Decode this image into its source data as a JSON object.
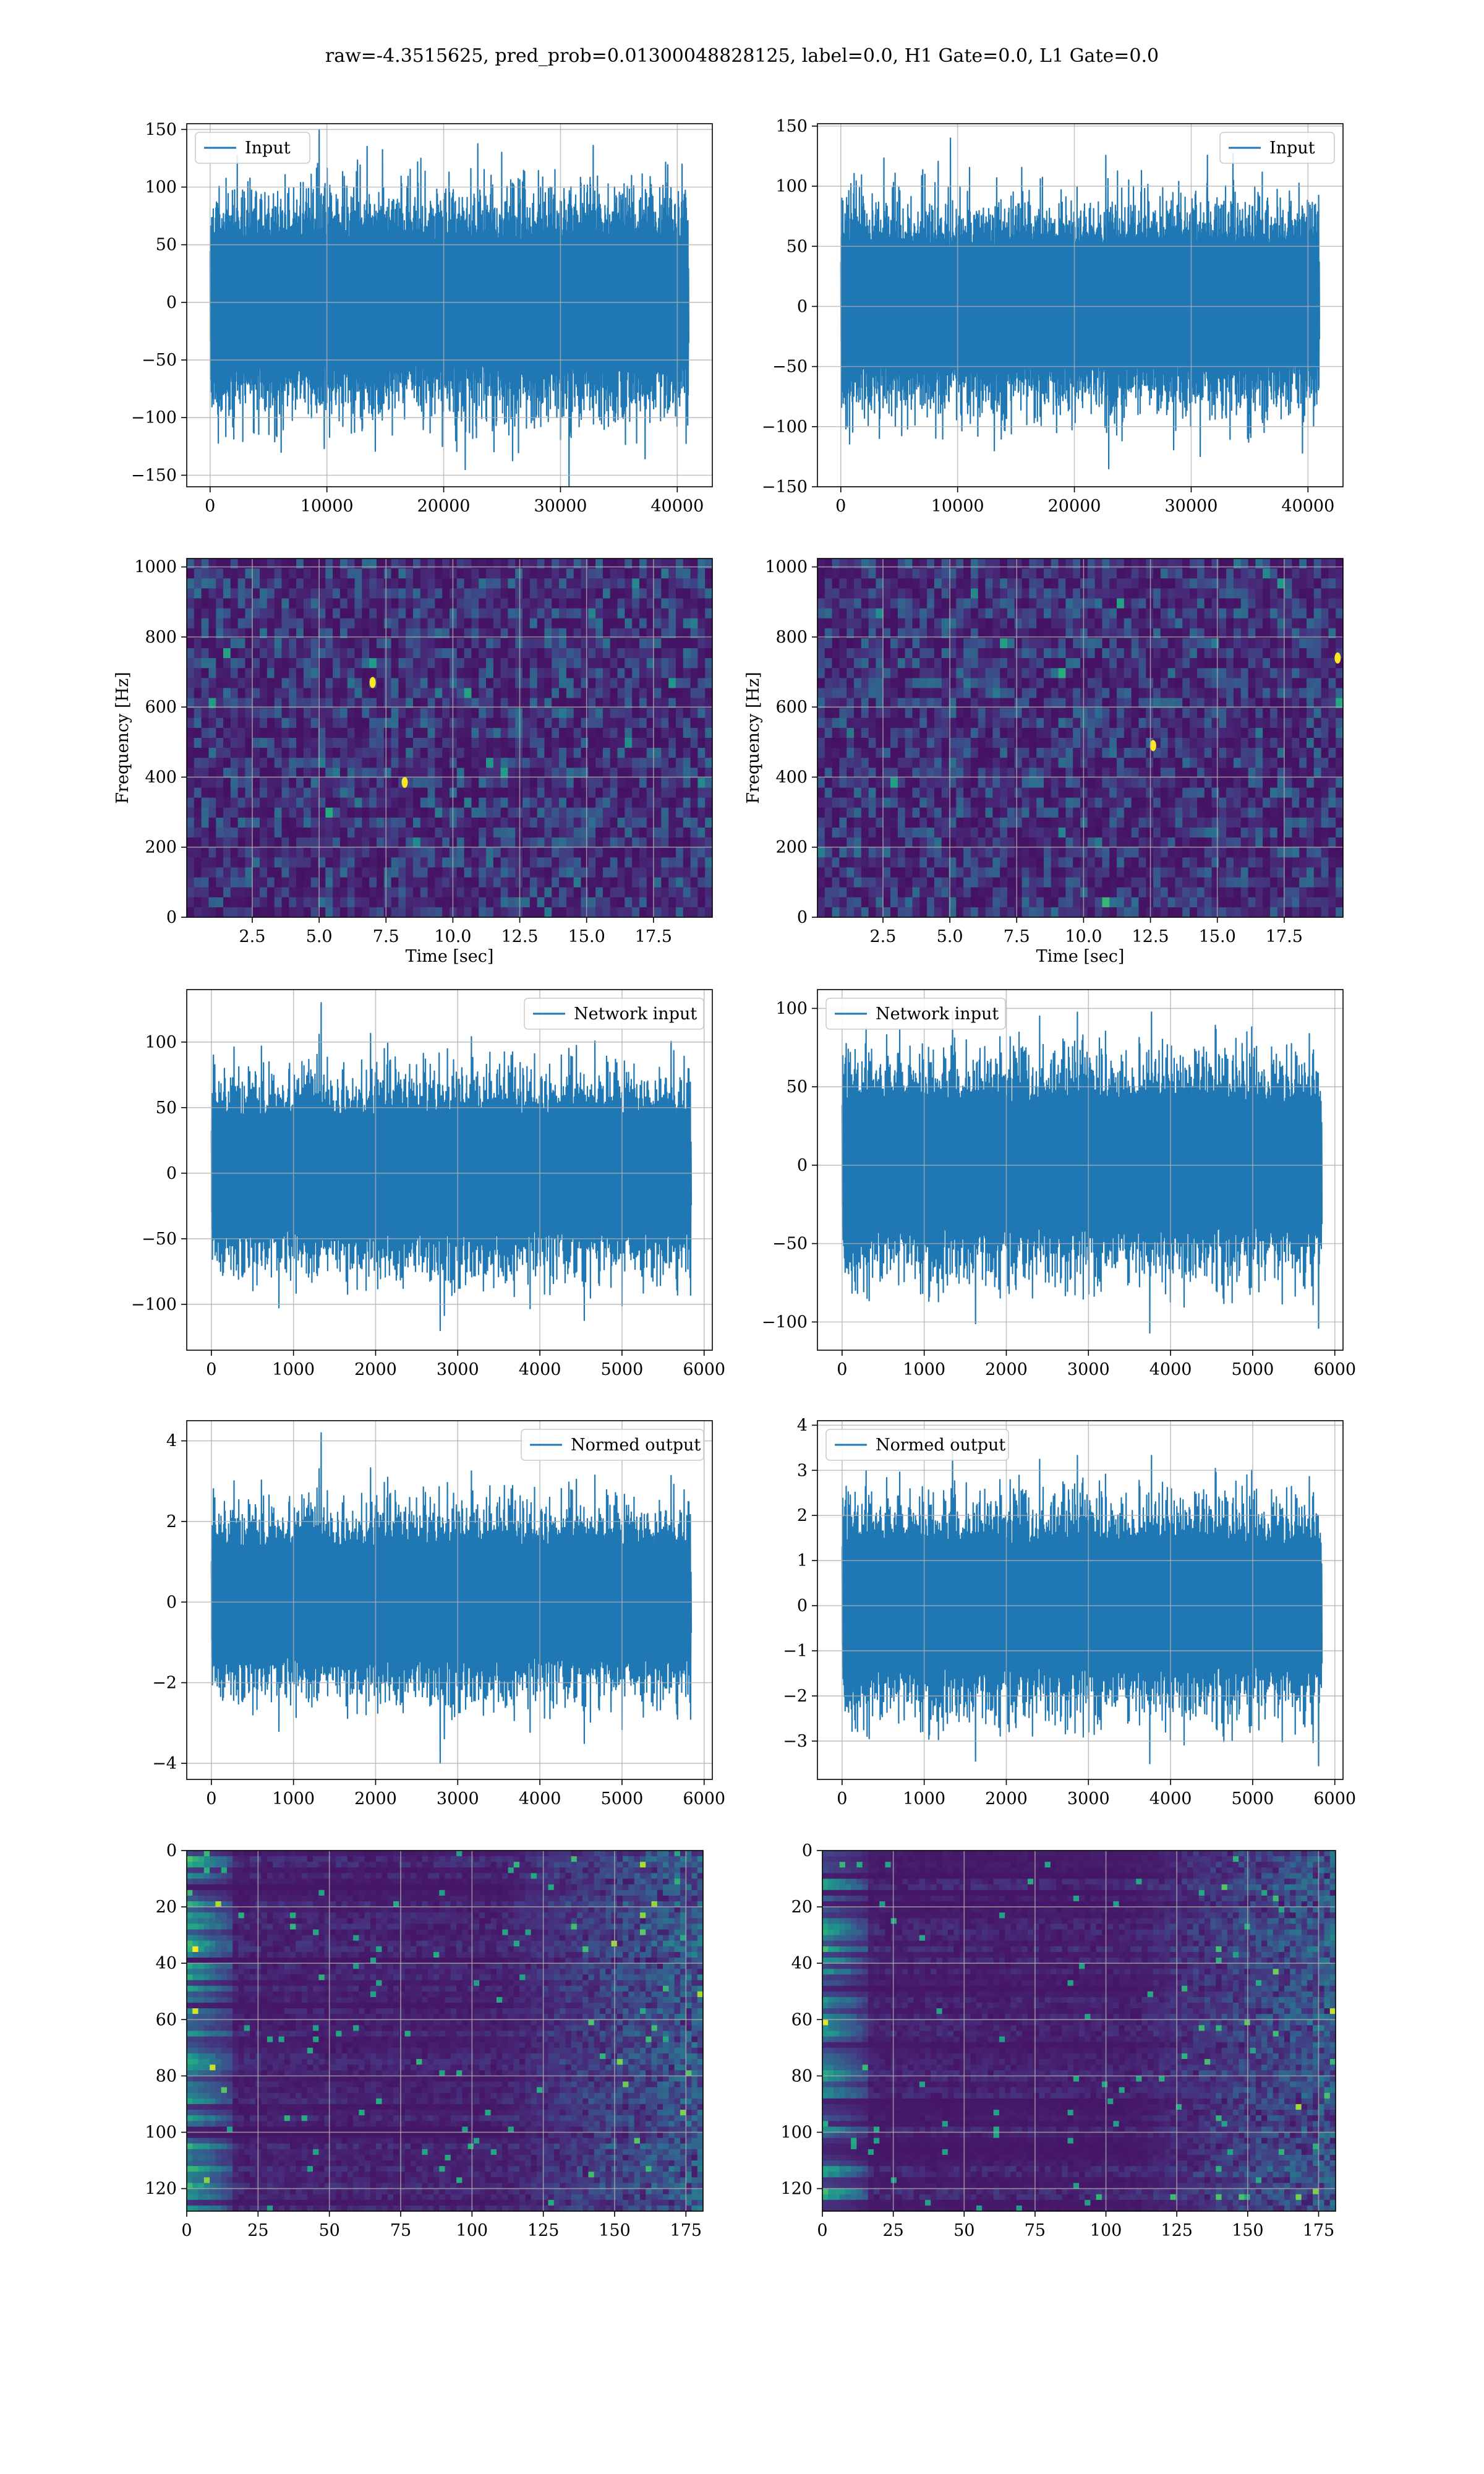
{
  "figure": {
    "title": "raw=-4.3515625, pred_prob=0.01300048828125, label=0.0, H1 Gate=0.0, L1 Gate=0.0"
  },
  "colors": {
    "line": "#1f77b4",
    "grid": "#b0b0b0",
    "viridis_low": "#440154",
    "viridis_mid": "#21918c",
    "viridis_high": "#fde725"
  },
  "chart_data": [
    {
      "id": "h1_input",
      "type": "line",
      "xlim": [
        -2000,
        43000
      ],
      "ylim": [
        -160,
        155
      ],
      "xticks": [
        0,
        10000,
        20000,
        30000,
        40000
      ],
      "yticks": [
        -150,
        -100,
        -50,
        0,
        50,
        100,
        150
      ],
      "x_range": [
        0,
        40960
      ],
      "n_points": 900,
      "amplitude": 30,
      "peak_max": 150,
      "peak_min": -145,
      "seed": 11,
      "legend": {
        "label": "Input",
        "loc": "upper left"
      },
      "grid": true
    },
    {
      "id": "l1_input",
      "type": "line",
      "xlim": [
        -2000,
        43000
      ],
      "ylim": [
        -150,
        152
      ],
      "xticks": [
        0,
        10000,
        20000,
        30000,
        40000
      ],
      "yticks": [
        -150,
        -100,
        -50,
        0,
        50,
        100,
        150
      ],
      "x_range": [
        0,
        40960
      ],
      "n_points": 900,
      "amplitude": 27,
      "peak_max": 140,
      "peak_min": -135,
      "seed": 23,
      "legend": {
        "label": "Input",
        "loc": "upper right"
      },
      "grid": true
    },
    {
      "id": "h1_spectrogram",
      "type": "heatmap",
      "xlim": [
        0.05,
        19.7
      ],
      "ylim": [
        0,
        1024
      ],
      "xticks": [
        2.5,
        5.0,
        7.5,
        10.0,
        12.5,
        15.0,
        17.5
      ],
      "yticks": [
        0,
        200,
        400,
        600,
        800,
        1000
      ],
      "xlabel": "Time [sec]",
      "ylabel": "Frequency [Hz]",
      "rows": 36,
      "cols": 72,
      "seed": 5,
      "hot": [
        [
          7.0,
          670
        ],
        [
          8.2,
          385
        ]
      ],
      "grid": true
    },
    {
      "id": "l1_spectrogram",
      "type": "heatmap",
      "xlim": [
        0.05,
        19.7
      ],
      "ylim": [
        0,
        1024
      ],
      "xticks": [
        2.5,
        5.0,
        7.5,
        10.0,
        12.5,
        15.0,
        17.5
      ],
      "yticks": [
        0,
        200,
        400,
        600,
        800,
        1000
      ],
      "xlabel": "Time [sec]",
      "ylabel": "Frequency [Hz]",
      "rows": 36,
      "cols": 72,
      "seed": 9,
      "hot": [
        [
          12.6,
          490
        ],
        [
          19.5,
          740
        ]
      ],
      "grid": true
    },
    {
      "id": "h1_network_input",
      "type": "line",
      "xlim": [
        -300,
        6100
      ],
      "ylim": [
        -135,
        140
      ],
      "xticks": [
        0,
        1000,
        2000,
        3000,
        4000,
        5000,
        6000
      ],
      "yticks": [
        -100,
        -50,
        0,
        50,
        100
      ],
      "x_range": [
        0,
        5840
      ],
      "n_points": 700,
      "amplitude": 24,
      "peak_max": 130,
      "peak_min": -120,
      "seed": 31,
      "legend": {
        "label": "Network input",
        "loc": "upper right"
      },
      "grid": true
    },
    {
      "id": "l1_network_input",
      "type": "line",
      "xlim": [
        -300,
        6100
      ],
      "ylim": [
        -118,
        112
      ],
      "xticks": [
        0,
        1000,
        2000,
        3000,
        4000,
        5000,
        6000
      ],
      "yticks": [
        -100,
        -50,
        0,
        50,
        100
      ],
      "x_range": [
        0,
        5840
      ],
      "n_points": 700,
      "amplitude": 22,
      "peak_max": 98,
      "peak_min": -107,
      "seed": 37,
      "legend": {
        "label": "Network input",
        "loc": "upper left"
      },
      "grid": true
    },
    {
      "id": "h1_normed_output",
      "type": "line",
      "xlim": [
        -300,
        6100
      ],
      "ylim": [
        -4.4,
        4.5
      ],
      "xticks": [
        0,
        1000,
        2000,
        3000,
        4000,
        5000,
        6000
      ],
      "yticks": [
        -4,
        -2,
        0,
        2,
        4
      ],
      "x_range": [
        0,
        5840
      ],
      "n_points": 700,
      "amplitude": 0.75,
      "peak_max": 4.2,
      "peak_min": -4.0,
      "seed": 31,
      "legend": {
        "label": "Normed output",
        "loc": "upper right"
      },
      "grid": true
    },
    {
      "id": "l1_normed_output",
      "type": "line",
      "xlim": [
        -300,
        6100
      ],
      "ylim": [
        -3.85,
        4.1
      ],
      "xticks": [
        0,
        1000,
        2000,
        3000,
        4000,
        5000,
        6000
      ],
      "yticks": [
        -3,
        -2,
        -1,
        0,
        1,
        2,
        3,
        4
      ],
      "x_range": [
        0,
        5840
      ],
      "n_points": 700,
      "amplitude": 0.75,
      "peak_max": 3.7,
      "peak_min": -3.5,
      "seed": 37,
      "legend": {
        "label": "Normed output",
        "loc": "upper left"
      },
      "grid": true
    },
    {
      "id": "h1_feature_map",
      "type": "heatmap",
      "xlim": [
        0,
        181
      ],
      "ylim": [
        128,
        0
      ],
      "xticks": [
        0,
        25,
        50,
        75,
        100,
        125,
        150,
        175
      ],
      "yticks": [
        0,
        20,
        40,
        60,
        80,
        100,
        120
      ],
      "rows": 64,
      "cols": 90,
      "seed": 41,
      "grid": true
    },
    {
      "id": "l1_feature_map",
      "type": "heatmap",
      "xlim": [
        0,
        181
      ],
      "ylim": [
        128,
        0
      ],
      "xticks": [
        0,
        25,
        50,
        75,
        100,
        125,
        150,
        175
      ],
      "yticks": [
        0,
        20,
        40,
        60,
        80,
        100,
        120
      ],
      "rows": 64,
      "cols": 90,
      "seed": 43,
      "grid": true
    }
  ]
}
